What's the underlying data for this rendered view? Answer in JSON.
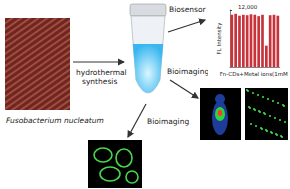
{
  "figure": {
    "source_label": "Fusobacterium nucleatum",
    "synthesis_label": [
      "hydrothermal",
      "synthesis"
    ],
    "top_arrow_label": "Biosensor",
    "right_arrow_label": "Bioimaging",
    "bottom_arrow_label": "Bioimaging"
  },
  "chart_data": {
    "type": "bar",
    "categories": [
      null,
      null,
      null,
      null,
      null,
      null,
      null,
      null,
      null,
      null,
      null,
      null,
      null
    ],
    "values": [
      11000,
      11200,
      10800,
      11000,
      10900,
      11100,
      11000,
      10700,
      11000,
      4500,
      10900,
      11000,
      10800
    ],
    "color": "#c8323a",
    "ylim": [
      0,
      12000
    ],
    "yticks": [
      {
        "value": 12000,
        "label": "12,000"
      }
    ],
    "y_label": "FL Intensity",
    "x_label": "Fn-CDs+Metal ions(1mM)",
    "tick_labels": "y",
    "grid": false
  }
}
